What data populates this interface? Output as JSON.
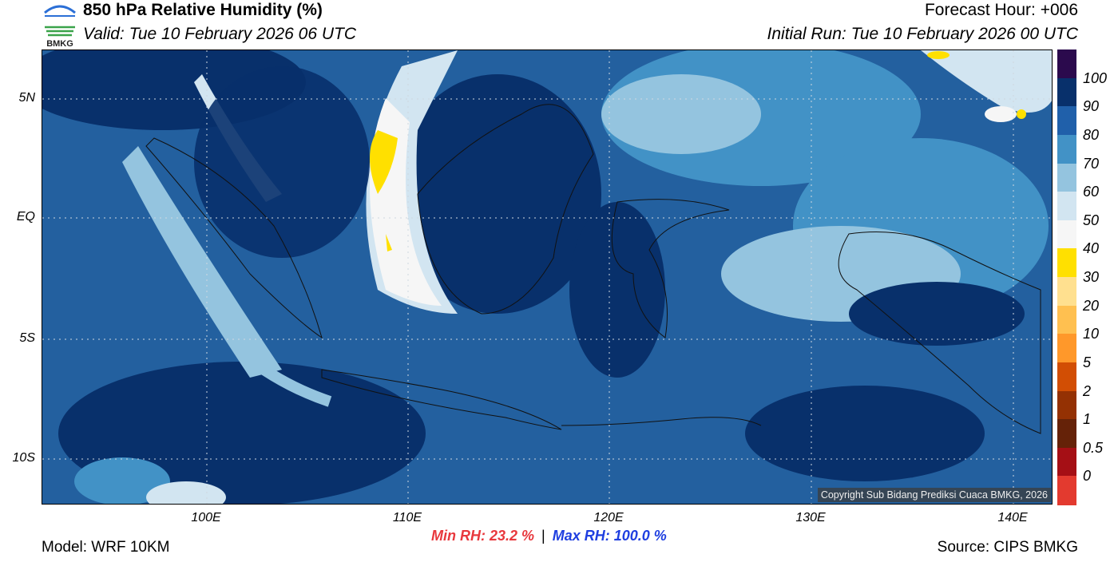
{
  "header": {
    "title": "850 hPa Relative Humidity (%)",
    "valid": "Valid: Tue 10 February 2026 06 UTC",
    "forecast_hour": "Forecast Hour: +006",
    "initial_run": "Initial Run: Tue 10 February 2026 00 UTC"
  },
  "logo": {
    "text": "BMKG"
  },
  "axes": {
    "lat_labels": [
      "5N",
      "EQ",
      "5S",
      "10S"
    ],
    "lon_labels": [
      "100E",
      "110E",
      "120E",
      "130E",
      "140E"
    ]
  },
  "colorbar": {
    "labels": [
      "100",
      "90",
      "80",
      "70",
      "60",
      "50",
      "40",
      "30",
      "20",
      "10",
      "5",
      "2",
      "1",
      "0.5",
      "0"
    ],
    "colors": [
      "#2b0a4d",
      "#08306b",
      "#2060aa",
      "#4292c6",
      "#94c4df",
      "#d2e5f1",
      "#f6f6f6",
      "#ffe000",
      "#ffe08f",
      "#ffc050",
      "#ff982a",
      "#d24e04",
      "#943103",
      "#652208",
      "#a50f15",
      "#e33a2f"
    ]
  },
  "footer": {
    "model": "Model: WRF 10KM",
    "source": "Source: CIPS BMKG",
    "min_rh": "Min RH:  23.2 %",
    "separator": "|",
    "max_rh": "Max RH: 100.0 %",
    "copyright": "Copyright Sub Bidang Prediksi Cuaca BMKG, 2026"
  }
}
